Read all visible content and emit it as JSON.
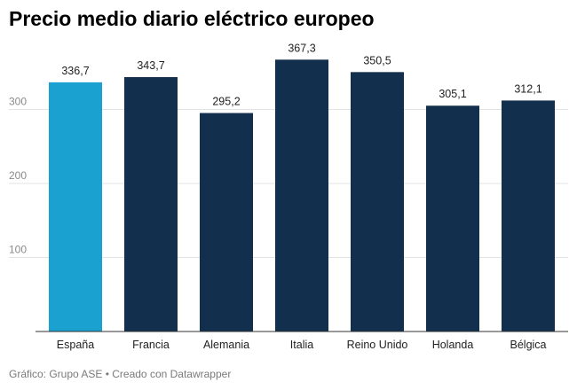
{
  "chart_data": {
    "type": "bar",
    "title": "Precio medio diario eléctrico europeo",
    "categories": [
      "España",
      "Francia",
      "Alemania",
      "Italia",
      "Reino Unido",
      "Holanda",
      "Bélgica"
    ],
    "values": [
      336.7,
      343.7,
      295.2,
      367.3,
      350.5,
      305.1,
      312.1
    ],
    "value_labels": [
      "336,7",
      "343,7",
      "295,2",
      "367,3",
      "350,5",
      "305,1",
      "312,1"
    ],
    "y_ticks": [
      100,
      200,
      300
    ],
    "y_tick_labels": [
      "100",
      "200",
      "300"
    ],
    "ylim": [
      0,
      400
    ],
    "xlabel": "",
    "ylabel": "",
    "grid": true,
    "colors": {
      "highlight": "#1aa1cf",
      "default": "#12304d"
    },
    "highlight_category": "España"
  },
  "footer": {
    "text": "Gráfico: Grupo ASE • Creado con Datawrapper"
  }
}
